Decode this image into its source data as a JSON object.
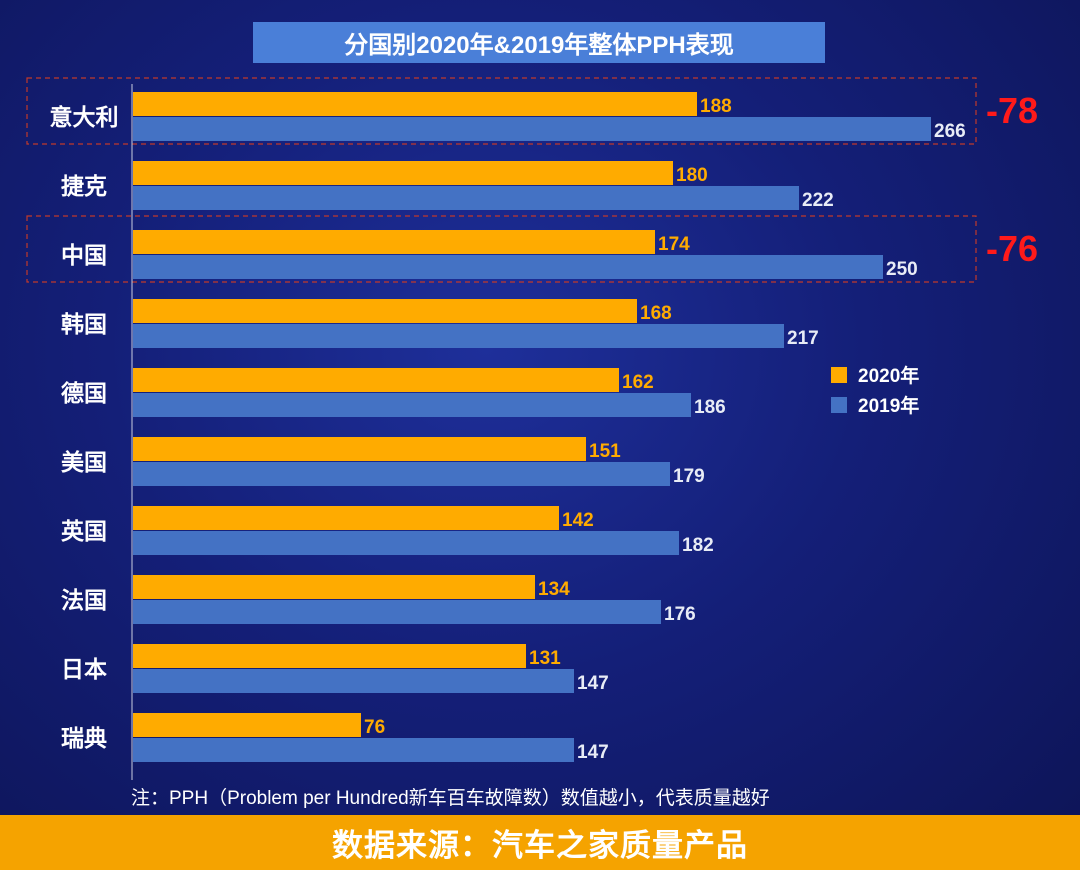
{
  "chart_data": {
    "type": "bar",
    "orientation": "horizontal",
    "title": "分国别2020年&2019年整体PPH表现",
    "categories": [
      "意大利",
      "捷克",
      "中国",
      "韩国",
      "德国",
      "美国",
      "英国",
      "法国",
      "日本",
      "瑞典"
    ],
    "series": [
      {
        "name": "2020年",
        "color": "#ffab00",
        "values": [
          188,
          180,
          174,
          168,
          162,
          151,
          142,
          134,
          131,
          76
        ]
      },
      {
        "name": "2019年",
        "color": "#4472c4",
        "values": [
          266,
          222,
          250,
          217,
          186,
          179,
          182,
          176,
          147,
          147
        ]
      }
    ],
    "xlim": [
      0,
      280
    ],
    "legend_position": "right",
    "annotations": [
      {
        "category": "意大利",
        "text": "-78"
      },
      {
        "category": "中国",
        "text": "-76"
      }
    ],
    "note": "注：PPH（Problem per Hundred新车百车故障数）数值越小，代表质量越好",
    "source": "数据来源：汽车之家质量产品"
  }
}
